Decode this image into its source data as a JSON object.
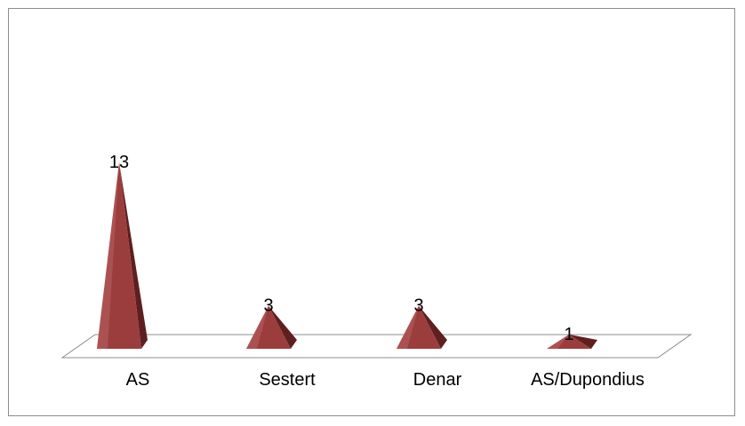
{
  "chart_data": {
    "type": "bar",
    "bar_shape": "pyramid-3d",
    "categories": [
      "AS",
      "Sestert",
      "Denar",
      "AS/Dupondius"
    ],
    "values": [
      13,
      3,
      3,
      1
    ],
    "data_labels": [
      "13",
      "3",
      "3",
      "1"
    ],
    "ylim": [
      0,
      13
    ],
    "grid": false,
    "legend": "none",
    "colors": {
      "front": "#9c3d3d",
      "side": "#5e1f1f",
      "highlight": "#c26a6a",
      "floor_stroke": "#8c8c8c"
    }
  }
}
